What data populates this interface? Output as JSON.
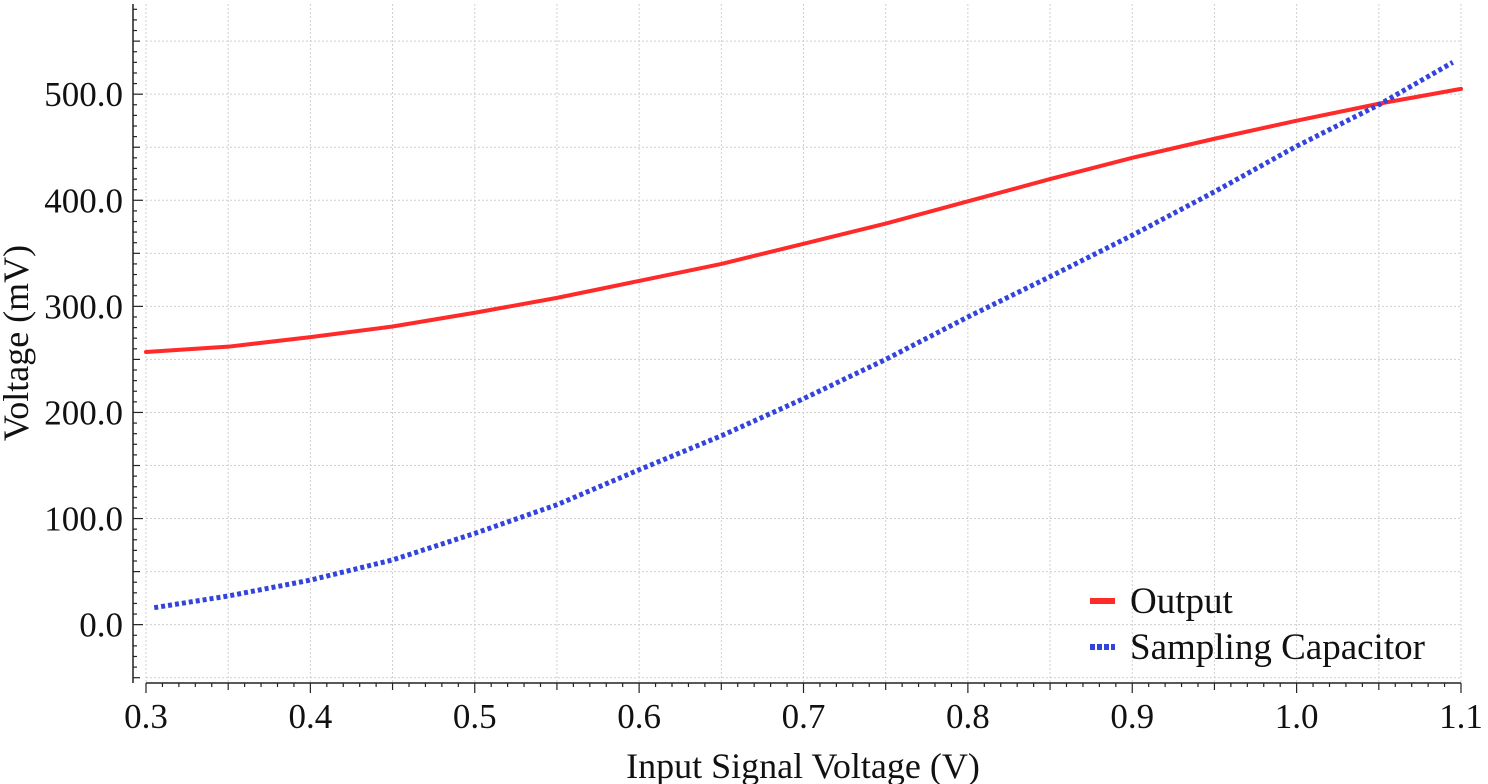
{
  "chart_data": {
    "type": "line",
    "title": "",
    "xlabel": "Input Signal Voltage (V)",
    "ylabel": "Voltage (mV)",
    "xlim": [
      0.3,
      1.1
    ],
    "ylim": [
      -55,
      585
    ],
    "x_ticks": [
      0.3,
      0.4,
      0.5,
      0.6,
      0.7,
      0.8,
      0.9,
      1.0,
      1.1
    ],
    "x_tick_labels": [
      "0.3",
      "0.4",
      "0.5",
      "0.6",
      "0.7",
      "0.8",
      "0.9",
      "1.0",
      "1.1"
    ],
    "y_ticks": [
      0,
      100,
      200,
      300,
      400,
      500
    ],
    "y_tick_labels": [
      "0.0",
      "100.0",
      "200.0",
      "300.0",
      "400.0",
      "500.0"
    ],
    "grid": true,
    "legend_position": "bottom-right",
    "series": [
      {
        "name": "Output",
        "color": "#ff2a2a",
        "style": "solid",
        "x": [
          0.3,
          0.35,
          0.4,
          0.45,
          0.5,
          0.55,
          0.6,
          0.65,
          0.7,
          0.75,
          0.8,
          0.85,
          0.9,
          0.95,
          1.0,
          1.05,
          1.1
        ],
        "y": [
          257,
          262,
          271,
          281,
          294,
          308,
          324,
          340,
          359,
          378,
          399,
          420,
          440,
          458,
          475,
          491,
          505
        ]
      },
      {
        "name": "Sampling Capacitor",
        "color": "#3344dd",
        "style": "dotted",
        "x": [
          0.305,
          0.35,
          0.4,
          0.45,
          0.5,
          0.55,
          0.6,
          0.65,
          0.7,
          0.75,
          0.8,
          0.85,
          0.9,
          0.95,
          1.0,
          1.05,
          1.095
        ],
        "y": [
          16,
          27,
          42,
          61,
          86,
          113,
          146,
          178,
          213,
          250,
          290,
          328,
          367,
          408,
          451,
          490,
          530
        ]
      }
    ]
  }
}
